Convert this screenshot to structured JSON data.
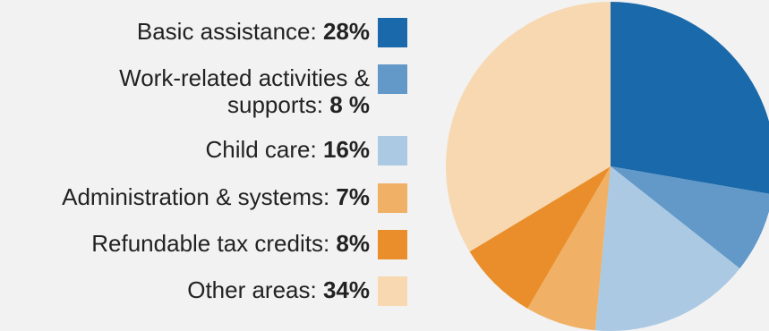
{
  "chart_data": {
    "type": "pie",
    "start_angle_deg": 0,
    "direction": "clockwise",
    "slices": [
      {
        "label": "Basic assistance:",
        "value_text": "28%",
        "value": 28,
        "color": "#1a69aa",
        "label_lines": [
          "Basic assistance: "
        ]
      },
      {
        "label": "Work-related activities & supports:",
        "value_text": "8 %",
        "value": 8,
        "color": "#6299c8",
        "label_lines": [
          "Work-related activities &",
          "supports: "
        ]
      },
      {
        "label": "Child care:",
        "value_text": "16%",
        "value": 16,
        "color": "#abc9e3",
        "label_lines": [
          "Child care: "
        ]
      },
      {
        "label": "Administration & systems:",
        "value_text": "7%",
        "value": 7,
        "color": "#f0b065",
        "label_lines": [
          "Administration & systems: "
        ]
      },
      {
        "label": "Refundable tax credits:",
        "value_text": "8%",
        "value": 8,
        "color": "#e98e2a",
        "label_lines": [
          "Refundable tax credits: "
        ]
      },
      {
        "label": "Other areas:",
        "value_text": "34%",
        "value": 34,
        "color": "#f7d8b0",
        "label_lines": [
          "Other areas: "
        ]
      }
    ]
  }
}
